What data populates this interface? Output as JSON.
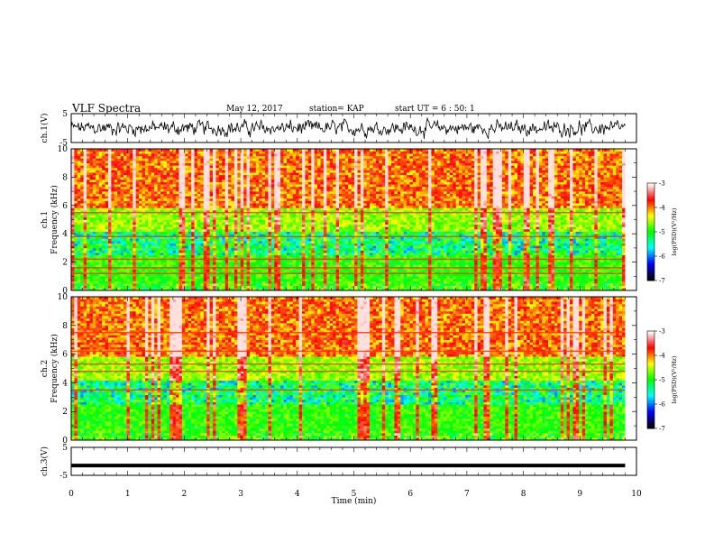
{
  "header": {
    "title": "VLF Spectra",
    "date": "May 12, 2017",
    "station": "station= KAP",
    "start": "start  UT =  6 : 50: 1"
  },
  "colorbar": {
    "label": "log(PSD)(V²/Hz)",
    "ticks": [
      "-3",
      "-4",
      "-5",
      "-6",
      "-7"
    ],
    "range": [
      -7,
      -3
    ],
    "colors": [
      "#ffffff",
      "#ff0000",
      "#ffff00",
      "#00ff00",
      "#00ffff",
      "#0000ff",
      "#000000"
    ]
  },
  "chart_data": [
    {
      "type": "line",
      "name": "ch1-waveform",
      "ylabel": "ch.1(V)",
      "ylim": [
        -5,
        5
      ],
      "yticks": [
        "5",
        "-5"
      ],
      "xlim": [
        0,
        10
      ]
    },
    {
      "type": "heatmap",
      "name": "ch1-spectrogram",
      "ylabel_channel": "ch.1",
      "ylabel": "Frequency (kHz)",
      "ylim": [
        0,
        10
      ],
      "yticks": [
        "0",
        "2",
        "4",
        "6",
        "8",
        "10"
      ],
      "xlim": [
        0,
        10.0
      ]
    },
    {
      "type": "heatmap",
      "name": "ch2-spectrogram",
      "ylabel_channel": "ch.2",
      "ylabel": "Frequency (kHz)",
      "ylim": [
        0,
        10
      ],
      "yticks": [
        "0",
        "2",
        "4",
        "6",
        "8",
        "10"
      ],
      "xlim": [
        0,
        10.0
      ],
      "emission_lines_khz": [
        4.8,
        3.5,
        5.3,
        6.2,
        7.5
      ]
    },
    {
      "type": "line",
      "name": "ch3-waveform",
      "ylabel": "ch.3(V)",
      "ylim": [
        -5,
        5
      ],
      "yticks": [
        "5",
        "-5"
      ],
      "xlim": [
        0,
        10
      ],
      "x": [
        0,
        9.8
      ],
      "y": [
        -1.5,
        -1.5
      ]
    }
  ],
  "xaxis": {
    "label": "Time  (min)",
    "ticks": [
      "0",
      "1",
      "2",
      "3",
      "4",
      "5",
      "6",
      "7",
      "8",
      "9",
      "10"
    ],
    "range": [
      0,
      10
    ]
  }
}
